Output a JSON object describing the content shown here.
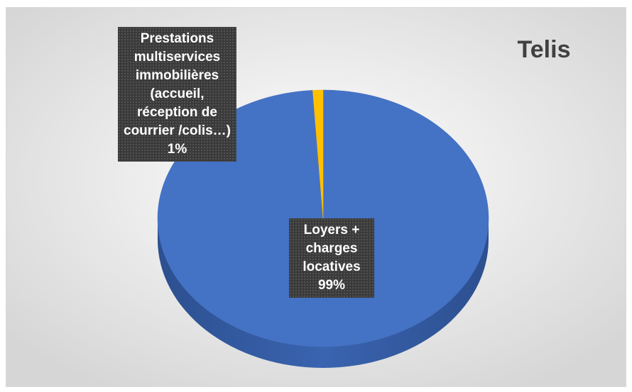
{
  "chart_data": {
    "type": "pie",
    "title": "Telis",
    "categories": [
      "Loyers + charges locatives",
      "Prestations multiservices immobilières (accueil, réception de courrier /colis…)"
    ],
    "values": [
      99,
      1
    ],
    "value_labels": [
      "99%",
      "1%"
    ],
    "colors": [
      "#4472c4",
      "#ffc000"
    ]
  }
}
